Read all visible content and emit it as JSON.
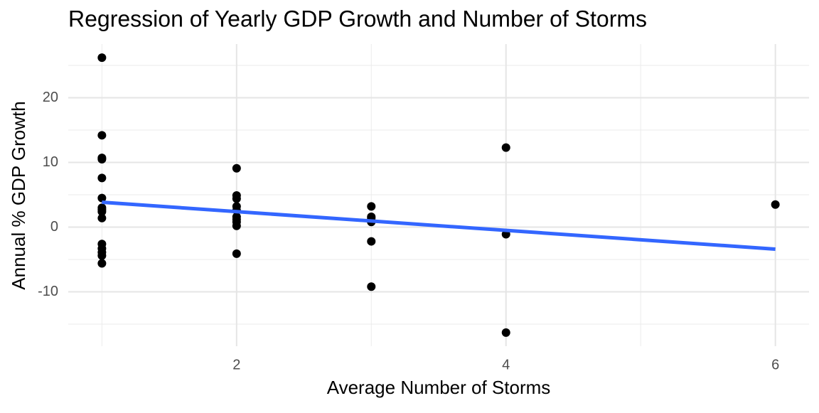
{
  "chart_data": {
    "type": "scatter",
    "title": "Regression of Yearly GDP Growth and Number of Storms",
    "x_label": "Average Number of Storms",
    "y_label": "Annual % GDP Growth",
    "x": [
      1,
      1,
      1,
      1,
      1,
      1,
      1,
      1,
      1,
      1,
      1,
      1,
      1,
      1,
      1,
      2,
      2,
      2,
      2,
      2,
      2,
      2,
      2,
      2,
      2,
      3,
      3,
      3,
      3,
      3,
      3,
      4,
      4,
      4,
      6
    ],
    "values": [
      26.2,
      14.2,
      10.7,
      10.5,
      7.6,
      4.5,
      3.0,
      2.7,
      2.4,
      1.4,
      -2.6,
      -3.3,
      -3.9,
      -4.4,
      -5.6,
      9.1,
      4.9,
      4.4,
      3.2,
      2.6,
      1.6,
      1.2,
      0.8,
      0.2,
      -4.1,
      3.2,
      1.6,
      1.4,
      0.8,
      -2.2,
      -9.2,
      12.3,
      -1.1,
      -16.3,
      3.5
    ],
    "color": "#000000",
    "fit": {
      "x": [
        1,
        6
      ],
      "values": [
        3.85,
        -3.4
      ],
      "color": "#3366ff"
    },
    "xlim": [
      0.75,
      6.25
    ],
    "ylim": [
      -18.4,
      28.3
    ],
    "xticks": [
      2,
      4,
      6
    ],
    "yticks": [
      -10,
      0,
      10,
      20
    ],
    "grid": true
  }
}
